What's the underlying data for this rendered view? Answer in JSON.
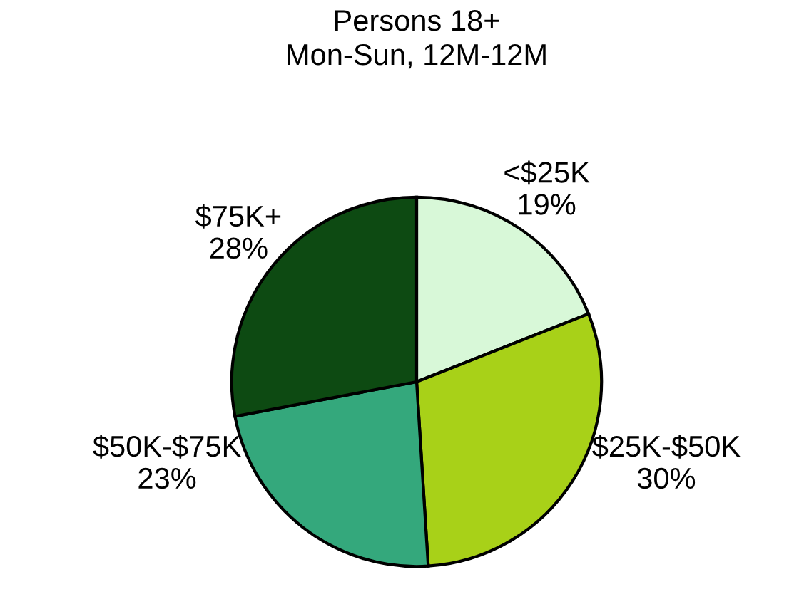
{
  "chart_data": {
    "type": "pie",
    "title": "Persons 18+\nMon-Sun, 12M-12M",
    "categories": [
      "<$25K",
      "$25K-$50K",
      "$50K-$75K",
      "$75K+"
    ],
    "values": [
      19,
      30,
      23,
      28
    ],
    "colors": [
      "#d8f8d8",
      "#a8d118",
      "#34a87c",
      "#0d4a12"
    ],
    "value_labels": [
      "19%",
      "30%",
      "23%",
      "28%"
    ]
  }
}
